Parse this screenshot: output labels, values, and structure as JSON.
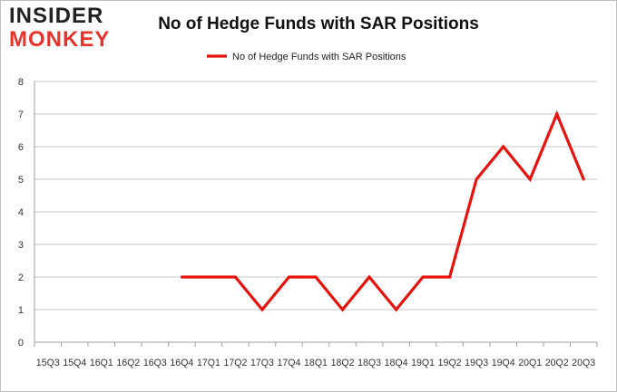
{
  "logo": {
    "line1": "INSIDER",
    "line2": "MONKEY"
  },
  "colors": {
    "series": "#e8120c",
    "grid": "#c8c8c8",
    "axis": "#a0a0a0"
  },
  "chart_data": {
    "type": "line",
    "title": "No of Hedge Funds with SAR Positions",
    "xlabel": "",
    "ylabel": "",
    "ylim": [
      0,
      8
    ],
    "yticks": [
      0,
      1,
      2,
      3,
      4,
      5,
      6,
      7,
      8
    ],
    "grid": true,
    "legend_position": "top-center",
    "categories": [
      "15Q3",
      "15Q4",
      "16Q1",
      "16Q2",
      "16Q3",
      "16Q4",
      "17Q1",
      "17Q2",
      "17Q3",
      "17Q4",
      "18Q1",
      "18Q2",
      "18Q3",
      "18Q4",
      "19Q1",
      "19Q2",
      "19Q3",
      "19Q4",
      "20Q1",
      "20Q2",
      "20Q3"
    ],
    "series": [
      {
        "name": "No of Hedge Funds with SAR Positions",
        "values": [
          null,
          null,
          null,
          null,
          null,
          2,
          2,
          2,
          1,
          2,
          2,
          1,
          2,
          1,
          2,
          2,
          5,
          6,
          5,
          7,
          5
        ]
      }
    ]
  }
}
